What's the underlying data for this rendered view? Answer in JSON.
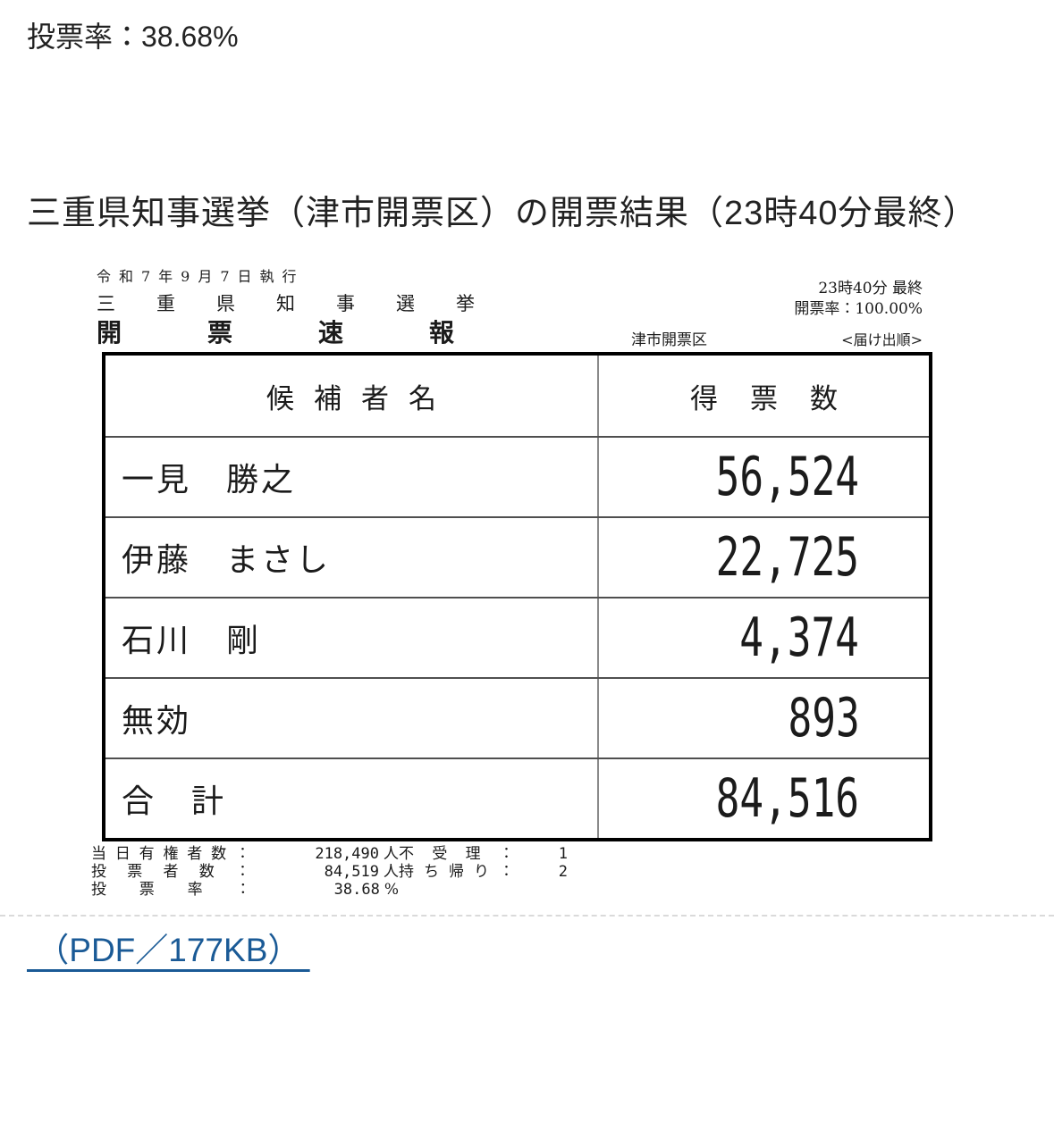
{
  "page": {
    "turnout_text": "投票率：38.68%",
    "heading": "三重県知事選挙（津市開票区）の開票結果（23時40分最終）",
    "pdf_link_label": " （PDF／177KB） ",
    "link_color": "#1a5a96"
  },
  "scan": {
    "execution_date": "令和7年9月7日執行",
    "election_name": "三重県知事選挙",
    "report_title": "開票速報",
    "time_status": "23時40分 最終",
    "count_rate": "開票率：100.00%",
    "district": "津市開票区",
    "order_note": "<届け出順>",
    "table": {
      "header_candidate": "候補者名",
      "header_votes": "得票数",
      "rows": [
        {
          "name": "一見　勝之",
          "votes": "56,524"
        },
        {
          "name": "伊藤　まさし",
          "votes": "22,725"
        },
        {
          "name": "石川　剛",
          "votes": "4,374"
        },
        {
          "name": "無効",
          "votes": "893"
        },
        {
          "name": "合　計",
          "votes": "84,516"
        }
      ]
    },
    "stats_left": [
      {
        "label": "当日有権者数：",
        "value": "218,490",
        "unit": "人"
      },
      {
        "label": "投票者数：",
        "value": "84,519",
        "unit": "人"
      },
      {
        "label": "投票率：",
        "value": "38.68",
        "unit": "%"
      }
    ],
    "stats_right": [
      {
        "label": "不受理：",
        "value": "1"
      },
      {
        "label": "持ち帰り：",
        "value": "2"
      }
    ]
  }
}
